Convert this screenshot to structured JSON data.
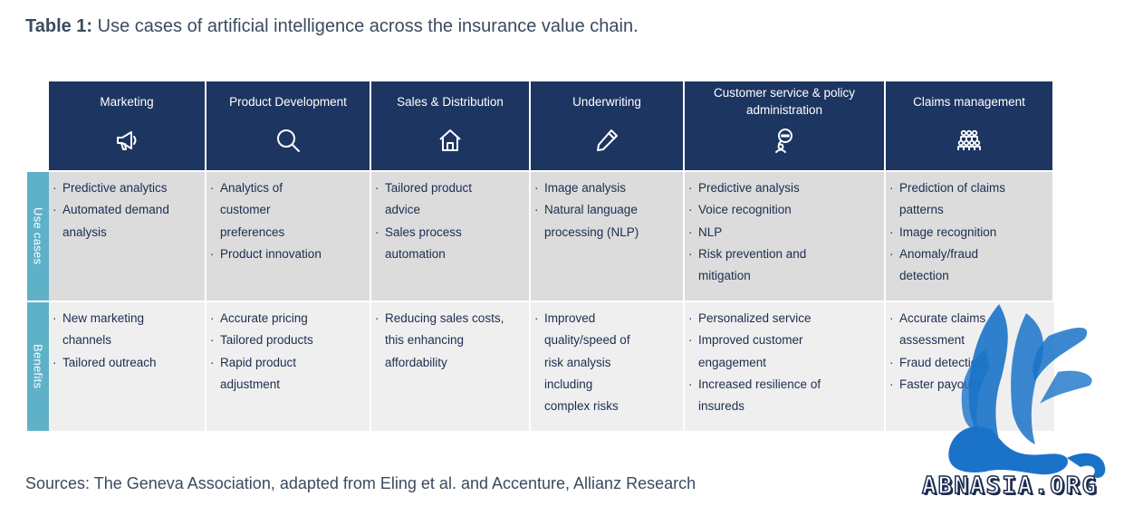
{
  "title": {
    "bold": "Table 1:",
    "text": "Use cases of artificial intelligence across the insurance value chain."
  },
  "row_labels": {
    "use_cases": "Use cases",
    "benefits": "Benefits"
  },
  "columns": [
    {
      "label": "Marketing",
      "icon": "megaphone-icon",
      "use_cases": [
        "Predictive analytics",
        "Automated demand analysis"
      ],
      "benefits": [
        "New marketing channels",
        "Tailored outreach"
      ]
    },
    {
      "label": "Product Development",
      "icon": "magnifier-icon",
      "use_cases": [
        "Analytics of customer preferences",
        "Product innovation"
      ],
      "benefits": [
        "Accurate pricing",
        "Tailored products",
        "Rapid product adjustment"
      ]
    },
    {
      "label": "Sales & Distribution",
      "icon": "house-icon",
      "use_cases": [
        "Tailored product advice",
        "Sales process automation"
      ],
      "benefits": [
        "Reducing sales costs, this enhancing affordability"
      ]
    },
    {
      "label": "Underwriting",
      "icon": "pen-icon",
      "use_cases": [
        "Image analysis",
        "Natural language processing (NLP)"
      ],
      "benefits": [
        "Improved quality/speed of risk analysis including complex risks"
      ]
    },
    {
      "label": "Customer service & policy administration",
      "icon": "chat-person-icon",
      "use_cases": [
        "Predictive analysis",
        "Voice recognition",
        "NLP",
        "Risk prevention and mitigation"
      ],
      "benefits": [
        "Personalized service",
        "Improved customer engagement",
        "Increased resilience of insureds"
      ]
    },
    {
      "label": "Claims management",
      "icon": "group-icon",
      "use_cases": [
        "Prediction of claims patterns",
        "Image recognition",
        "Anomaly/fraud detection"
      ],
      "benefits": [
        "Accurate claims assessment",
        "Fraud detection",
        "Faster payouts"
      ]
    }
  ],
  "source": "Sources: The Geneva Association, adapted from Eling et al. and Accenture, Allianz Research",
  "watermark": {
    "text": "ABNASIA.ORG"
  },
  "colors": {
    "header": "#1d3561",
    "side": "#5fb1c8",
    "use_bg": "#dcdcdc",
    "ben_bg": "#efefef",
    "watermark": "#1a73c8"
  }
}
